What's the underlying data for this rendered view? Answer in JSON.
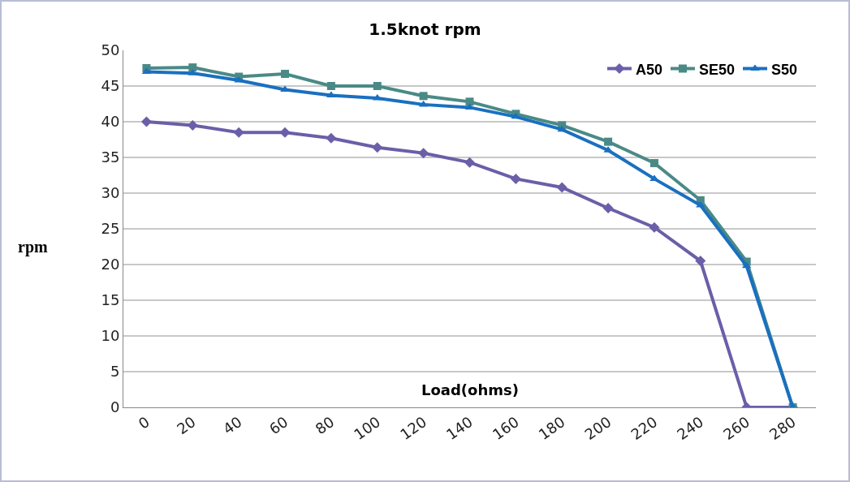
{
  "chart_data": {
    "type": "line",
    "title": "1.5knot rpm",
    "xlabel": "Load(ohms)",
    "ylabel": "rpm",
    "categories": [
      "0",
      "20",
      "40",
      "60",
      "80",
      "100",
      "120",
      "140",
      "160",
      "180",
      "200",
      "220",
      "240",
      "260",
      "280"
    ],
    "series": [
      {
        "name": "A50",
        "color": "#6a5fa8",
        "marker": "diamond",
        "values": [
          40,
          39.5,
          38.5,
          38.5,
          37.7,
          36.4,
          35.6,
          34.3,
          32,
          30.8,
          27.9,
          25.2,
          20.5,
          0,
          0
        ]
      },
      {
        "name": "SE50",
        "color": "#4a8a86",
        "marker": "square",
        "values": [
          47.5,
          47.6,
          46.3,
          46.7,
          45,
          45,
          43.6,
          42.8,
          41.1,
          39.5,
          37.2,
          34.2,
          29,
          20.4,
          0
        ]
      },
      {
        "name": "S50",
        "color": "#1a70c0",
        "marker": "triangle",
        "values": [
          47,
          46.8,
          45.8,
          44.5,
          43.7,
          43.3,
          42.4,
          42,
          40.7,
          38.9,
          36,
          32,
          28.3,
          19.8,
          0
        ]
      }
    ],
    "ylim": [
      0,
      50
    ],
    "yticks": [
      0,
      5,
      10,
      15,
      20,
      25,
      30,
      35,
      40,
      45,
      50
    ],
    "grid": "y",
    "legend": "top right"
  }
}
